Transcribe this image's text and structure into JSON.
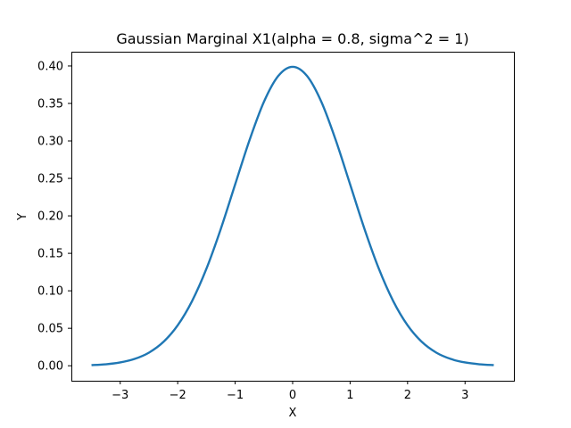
{
  "chart_data": {
    "type": "line",
    "title": "Gaussian Marginal X1(alpha = 0.8, sigma^2 = 1)",
    "xlabel": "X",
    "ylabel": "Y",
    "xlim": [
      -3.85,
      3.85
    ],
    "ylim": [
      -0.02,
      0.419
    ],
    "grid": false,
    "x_ticks": [
      {
        "value": -3,
        "label": "−3"
      },
      {
        "value": -2,
        "label": "−2"
      },
      {
        "value": -1,
        "label": "−1"
      },
      {
        "value": 0,
        "label": "0"
      },
      {
        "value": 1,
        "label": "1"
      },
      {
        "value": 2,
        "label": "2"
      },
      {
        "value": 3,
        "label": "3"
      }
    ],
    "y_ticks": [
      {
        "value": 0.0,
        "label": "0.00"
      },
      {
        "value": 0.05,
        "label": "0.05"
      },
      {
        "value": 0.1,
        "label": "0.10"
      },
      {
        "value": 0.15,
        "label": "0.15"
      },
      {
        "value": 0.2,
        "label": "0.20"
      },
      {
        "value": 0.25,
        "label": "0.25"
      },
      {
        "value": 0.3,
        "label": "0.30"
      },
      {
        "value": 0.35,
        "label": "0.35"
      },
      {
        "value": 0.4,
        "label": "0.40"
      }
    ],
    "series": [
      {
        "color": "#1f77b4",
        "x": [
          -3.5,
          -3.25,
          -3.0,
          -2.75,
          -2.5,
          -2.25,
          -2.0,
          -1.75,
          -1.5,
          -1.25,
          -1.0,
          -0.75,
          -0.5,
          -0.25,
          0.0,
          0.25,
          0.5,
          0.75,
          1.0,
          1.25,
          1.5,
          1.75,
          2.0,
          2.25,
          2.5,
          2.75,
          3.0,
          3.25,
          3.5
        ],
        "y": [
          0.0009,
          0.002,
          0.0044,
          0.0091,
          0.0175,
          0.0317,
          0.054,
          0.0863,
          0.1295,
          0.1826,
          0.242,
          0.3011,
          0.3521,
          0.3867,
          0.3989,
          0.3867,
          0.3521,
          0.3011,
          0.242,
          0.1826,
          0.1295,
          0.0863,
          0.054,
          0.0317,
          0.0175,
          0.0091,
          0.0044,
          0.002,
          0.0009
        ]
      }
    ]
  }
}
